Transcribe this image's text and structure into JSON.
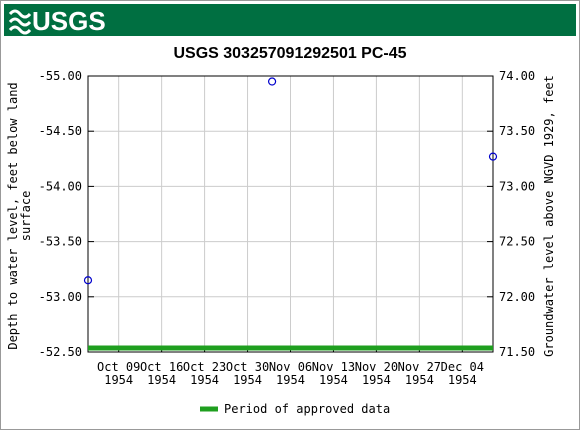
{
  "header": {
    "logo": "USGS"
  },
  "chart_data": {
    "type": "line",
    "title": "USGS 303257091292501 PC-45",
    "y_label": [
      "Depth to water level, feet below land",
      "surface"
    ],
    "y2_label": "Groundwater level above NGVD 1929, feet",
    "xlim": [
      "1954-10-04",
      "1954-12-09"
    ],
    "xticks": [
      {
        "value": "1954-10-09",
        "label": [
          "Oct 09",
          "1954"
        ]
      },
      {
        "value": "1954-10-16",
        "label": [
          "Oct 16",
          "1954"
        ]
      },
      {
        "value": "1954-10-23",
        "label": [
          "Oct 23",
          "1954"
        ]
      },
      {
        "value": "1954-10-30",
        "label": [
          "Oct 30",
          "1954"
        ]
      },
      {
        "value": "1954-11-06",
        "label": [
          "Nov 06",
          "1954"
        ]
      },
      {
        "value": "1954-11-13",
        "label": [
          "Nov 13",
          "1954"
        ]
      },
      {
        "value": "1954-11-20",
        "label": [
          "Nov 20",
          "1954"
        ]
      },
      {
        "value": "1954-11-27",
        "label": [
          "Nov 27",
          "1954"
        ]
      },
      {
        "value": "1954-12-04",
        "label": [
          "Dec 04",
          "1954"
        ]
      }
    ],
    "ylim": [
      -52.5,
      -55
    ],
    "yticks": [
      {
        "value": -55,
        "label": "-55.00"
      },
      {
        "value": -54.5,
        "label": "-54.50"
      },
      {
        "value": -54,
        "label": "-54.00"
      },
      {
        "value": -53.5,
        "label": "-53.50"
      },
      {
        "value": -53,
        "label": "-53.00"
      },
      {
        "value": -52.5,
        "label": "-52.50"
      }
    ],
    "y2lim": [
      71.5,
      74
    ],
    "y2ticks": [
      {
        "value": 74,
        "label": "74.00"
      },
      {
        "value": 73.5,
        "label": "73.50"
      },
      {
        "value": 73,
        "label": "73.00"
      },
      {
        "value": 72.5,
        "label": "72.50"
      },
      {
        "value": 72,
        "label": "72.00"
      },
      {
        "value": 71.5,
        "label": "71.50"
      }
    ],
    "grid": true,
    "series": [
      {
        "color": "#0000cc",
        "x": [
          "1954-10-04",
          "1954-11-03",
          "1954-12-09"
        ],
        "values": [
          -53.15,
          -54.95,
          -54.27
        ]
      }
    ],
    "approval_periods": [
      {
        "name": "Period of approved data",
        "color": "#1f9f1f",
        "x": [
          "1954-10-04",
          "1954-12-09"
        ]
      }
    ]
  }
}
